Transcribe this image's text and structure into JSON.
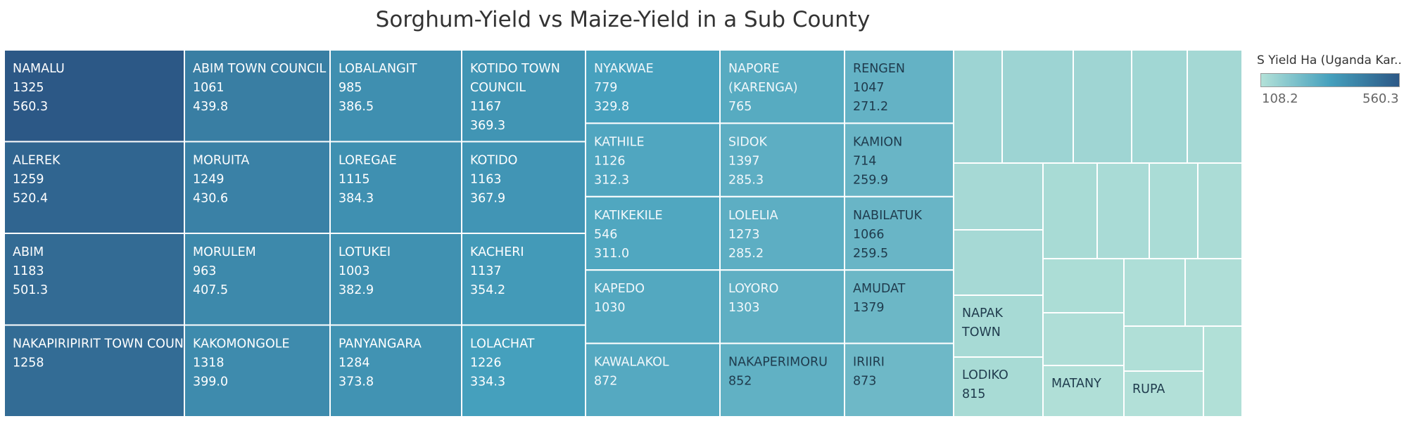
{
  "title": "Sorghum-Yield vs Maize-Yield in a Sub County",
  "legend": {
    "title": "S Yield Ha (Uganda Kar..",
    "min_label": "108.2",
    "max_label": "560.3",
    "min_value": 108.2,
    "max_value": 560.3,
    "color_low": "#b3e1d8",
    "color_mid": "#45a0bd",
    "color_high": "#2c5886"
  },
  "chart_data": {
    "type": "treemap",
    "title": "Sorghum-Yield vs Maize-Yield in a Sub County",
    "color_measure": "S Yield Ha (Uganda Kar..",
    "color_range": [
      108.2,
      560.3
    ],
    "columns": [
      [
        {
          "name": "NAMALU",
          "value": 1325,
          "s_yield": 560.3
        },
        {
          "name": "ALEREK",
          "value": 1259,
          "s_yield": 520.4
        },
        {
          "name": "ABIM",
          "value": 1183,
          "s_yield": 501.3
        },
        {
          "name": "NAKAPIRIPIRIT TOWN COUNCIL",
          "value": 1258
        }
      ],
      [
        {
          "name": "ABIM TOWN COUNCIL",
          "value": 1061,
          "s_yield": 439.8
        },
        {
          "name": "MORUITA",
          "value": 1249,
          "s_yield": 430.6
        },
        {
          "name": "MORULEM",
          "value": 963,
          "s_yield": 407.5
        },
        {
          "name": "KAKOMONGOLE",
          "value": 1318,
          "s_yield": 399.0
        }
      ],
      [
        {
          "name": "LOBALANGIT",
          "value": 985,
          "s_yield": 386.5
        },
        {
          "name": "LOREGAE",
          "value": 1115,
          "s_yield": 384.3
        },
        {
          "name": "LOTUKEI",
          "value": 1003,
          "s_yield": 382.9
        },
        {
          "name": "PANYANGARA",
          "value": 1284,
          "s_yield": 373.8
        }
      ],
      [
        {
          "name": "KOTIDO TOWN COUNCIL",
          "value": 1167,
          "s_yield": 369.3
        },
        {
          "name": "KOTIDO",
          "value": 1163,
          "s_yield": 367.9
        },
        {
          "name": "KACHERI",
          "value": 1137,
          "s_yield": 354.2
        },
        {
          "name": "LOLACHAT",
          "value": 1226,
          "s_yield": 334.3
        }
      ],
      [
        {
          "name": "NYAKWAE",
          "value": 779,
          "s_yield": 329.8
        },
        {
          "name": "KATHILE",
          "value": 1126,
          "s_yield": 312.3
        },
        {
          "name": "KATIKEKILE",
          "value": 546,
          "s_yield": 311.0
        },
        {
          "name": "KAPEDO",
          "value": 1030
        },
        {
          "name": "KAWALAKOL",
          "value": 872
        }
      ],
      [
        {
          "name": "NAPORE (KARENGA)",
          "value": 765
        },
        {
          "name": "SIDOK",
          "value": 1397,
          "s_yield": 285.3
        },
        {
          "name": "LOLELIA",
          "value": 1273,
          "s_yield": 285.2
        },
        {
          "name": "LOYORO",
          "value": 1303
        },
        {
          "name": "NAKAPERIMORU",
          "value": 852
        }
      ],
      [
        {
          "name": "RENGEN",
          "value": 1047,
          "s_yield": 271.2
        },
        {
          "name": "KAMION",
          "value": 714,
          "s_yield": 259.9
        },
        {
          "name": "NABILATUK",
          "value": 1066,
          "s_yield": 259.5
        },
        {
          "name": "AMUDAT",
          "value": 1379
        },
        {
          "name": "IRIIRI",
          "value": 873
        }
      ]
    ],
    "small_cells": [
      {
        "name": "NAPAK TOWN"
      },
      {
        "name": "LODIKO",
        "value": 815
      },
      {
        "name": "MATANY"
      },
      {
        "name": "RUPA"
      }
    ]
  }
}
